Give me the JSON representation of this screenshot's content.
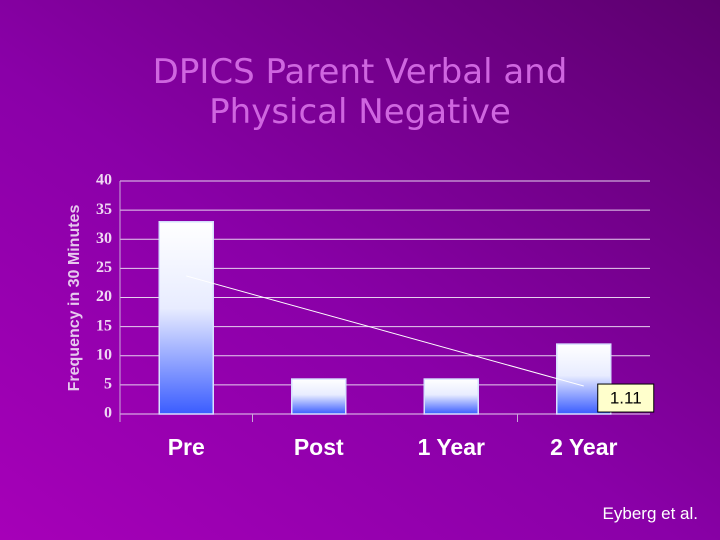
{
  "chart_data": {
    "type": "bar",
    "title": "DPICS Parent Verbal and Physical Negative",
    "y_label": "Frequency in 30 Minutes",
    "categories": [
      "Pre",
      "Post",
      "1 Year",
      "2 Year"
    ],
    "values": [
      33,
      6,
      6,
      12
    ],
    "color": "#3a5cff",
    "ylim": [
      0,
      40
    ],
    "yticks": [
      0,
      5,
      10,
      15,
      20,
      25,
      30,
      35,
      40
    ],
    "grid": true,
    "trendline": true,
    "annotation": "1.11",
    "source": "Eyberg et al."
  }
}
